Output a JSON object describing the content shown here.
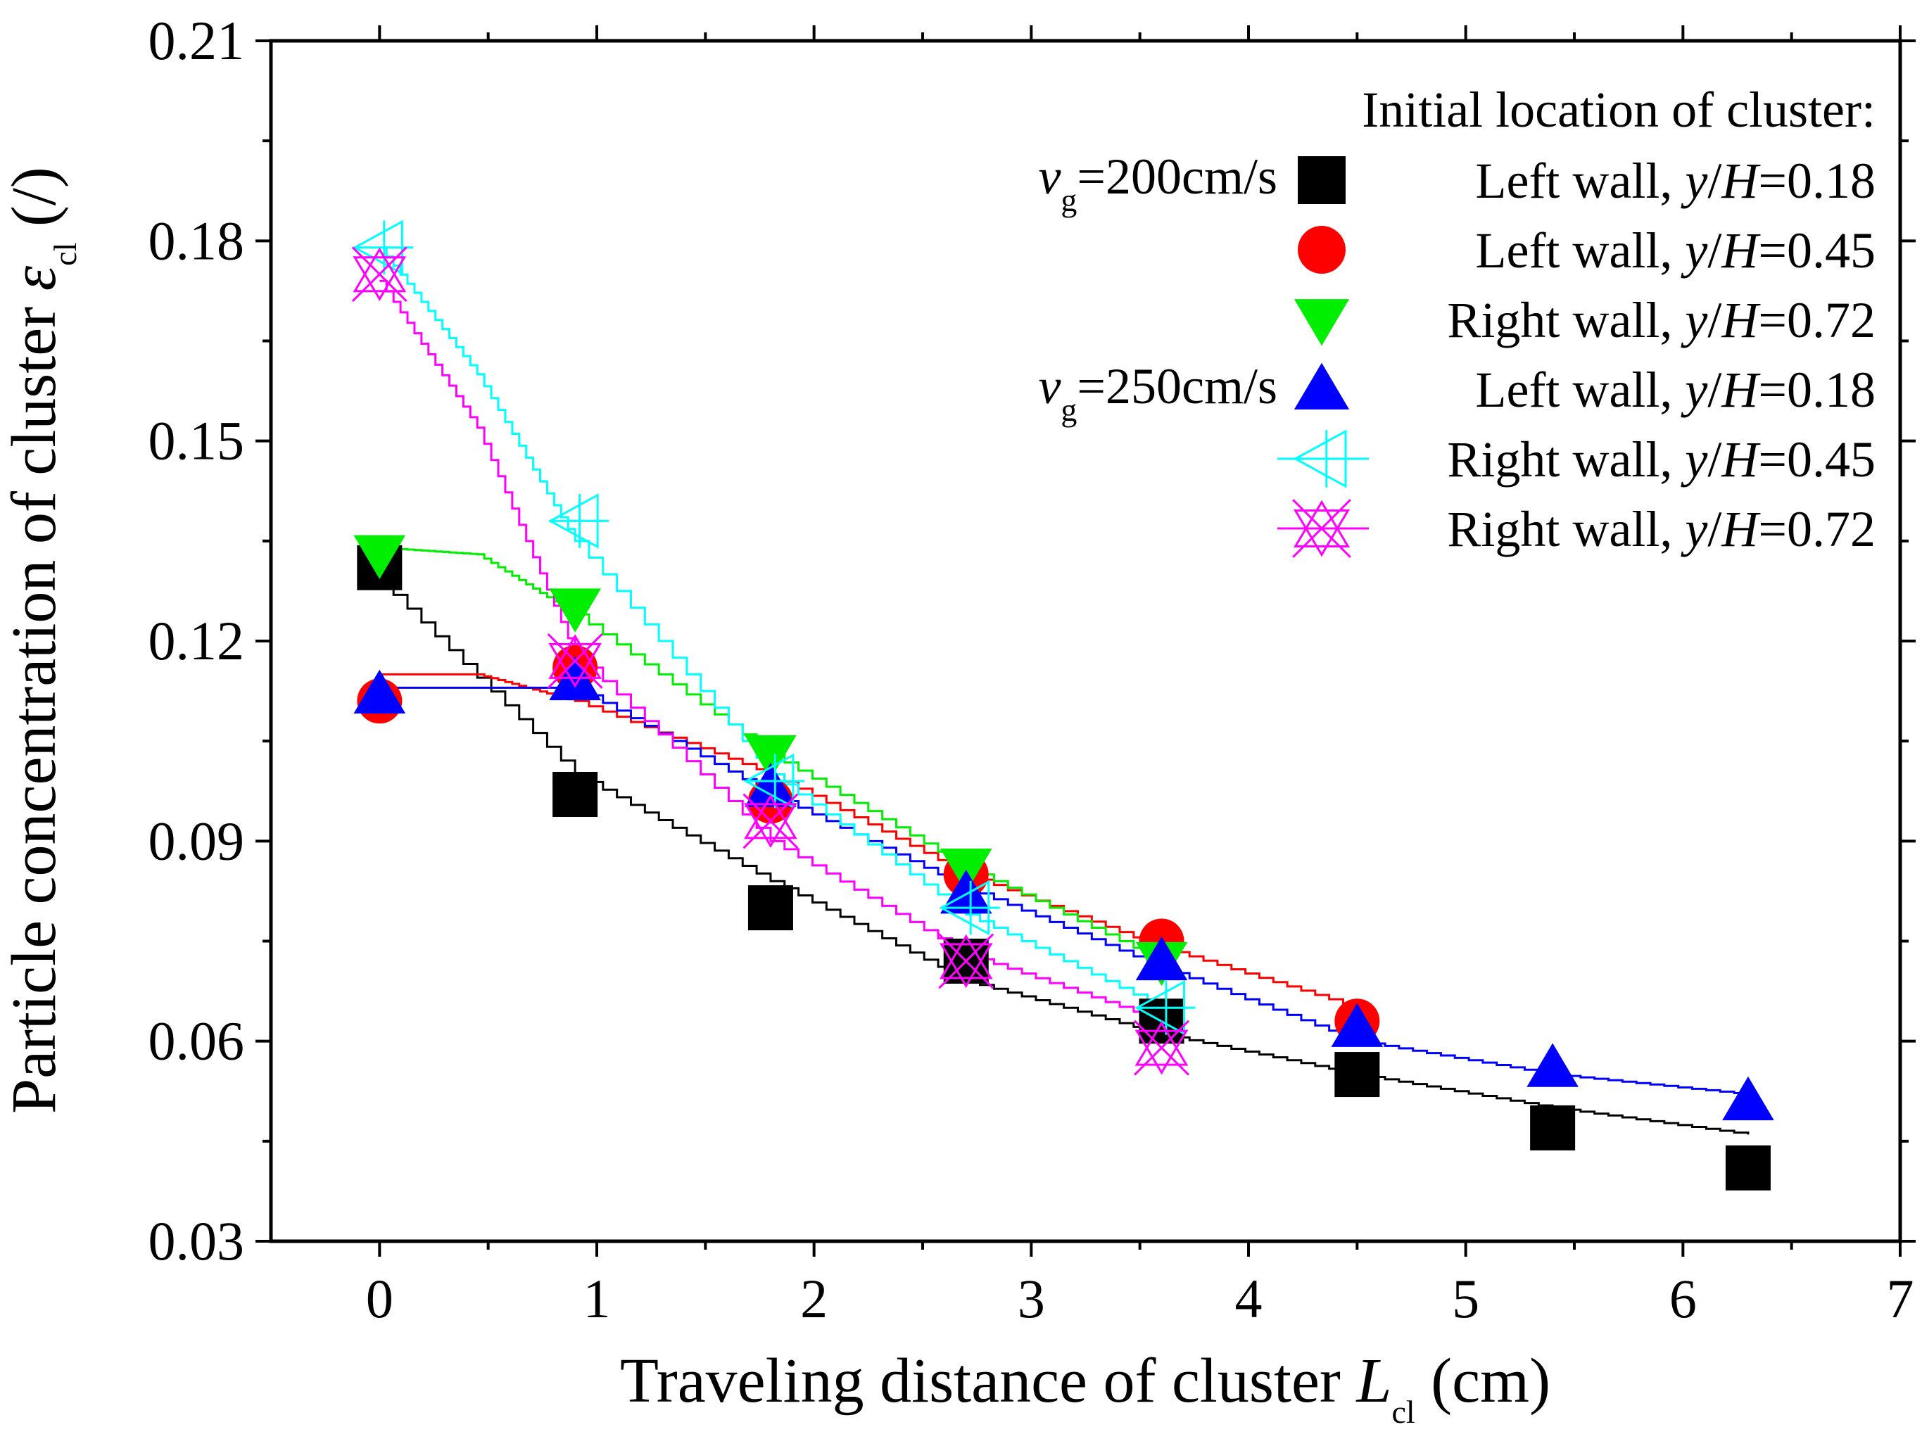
{
  "chart_data": {
    "type": "scatter",
    "xlabel": "Traveling distance of cluster ",
    "xlabel_symbol": "L",
    "xlabel_subscript": "cl",
    "xlabel_unit": " (cm)",
    "ylabel": "Particle concentration of cluster ",
    "ylabel_symbol": "ε",
    "ylabel_subscript": "cl",
    "ylabel_unit": " (/)",
    "xlim": [
      -0.5,
      7
    ],
    "ylim": [
      0.03,
      0.21
    ],
    "x_ticks": [
      0,
      1,
      2,
      3,
      4,
      5,
      6,
      7
    ],
    "x_tick_labels": [
      "0",
      "1",
      "2",
      "3",
      "4",
      "5",
      "6",
      "7"
    ],
    "y_ticks": [
      0.03,
      0.06,
      0.09,
      0.12,
      0.15,
      0.18,
      0.21
    ],
    "y_tick_labels": [
      "0.03",
      "0.06",
      "0.09",
      "0.12",
      "0.15",
      "0.18",
      "0.21"
    ],
    "legend": {
      "title": "Initial location of cluster:",
      "position": "top-right",
      "group_labels": [
        {
          "symbol": "v",
          "subscript": "g",
          "text": "=200cm/s"
        },
        {
          "symbol": "v",
          "subscript": "g",
          "text": "=250cm/s"
        }
      ]
    },
    "series": [
      {
        "name": "Left   wall, ",
        "ratio": "y/H",
        "ratio_value": "=0.18",
        "group": "200cm/s",
        "marker": "square",
        "color": "#000000",
        "x": [
          0.0,
          0.9,
          1.8,
          2.7,
          3.6,
          4.5,
          5.4,
          6.3
        ],
        "y": [
          0.131,
          0.097,
          0.08,
          0.072,
          0.063,
          0.055,
          0.047,
          0.041
        ]
      },
      {
        "name": "Left   wall, ",
        "ratio": "y/H",
        "ratio_value": "=0.45",
        "group": "200cm/s",
        "marker": "circle",
        "color": "#ff0000",
        "x": [
          0.0,
          0.9,
          1.8,
          2.7,
          3.6,
          4.5
        ],
        "y": [
          0.111,
          0.116,
          0.096,
          0.085,
          0.075,
          0.063
        ]
      },
      {
        "name": "Right wall, ",
        "ratio": "y/H",
        "ratio_value": "=0.72",
        "group": "200cm/s",
        "marker": "triangle-down",
        "color": "#00ee00",
        "x": [
          0.0,
          0.9,
          1.8,
          2.7,
          3.6
        ],
        "y": [
          0.133,
          0.125,
          0.103,
          0.086,
          0.072
        ]
      },
      {
        "name": "Left   wall, ",
        "ratio": "y/H",
        "ratio_value": "=0.18",
        "group": "250cm/s",
        "marker": "triangle-up",
        "color": "#0000ff",
        "x": [
          0.0,
          0.9,
          1.8,
          2.7,
          3.6,
          4.5,
          5.4,
          6.3
        ],
        "y": [
          0.112,
          0.114,
          0.098,
          0.082,
          0.072,
          0.062,
          0.056,
          0.051
        ]
      },
      {
        "name": "Right wall, ",
        "ratio": "y/H",
        "ratio_value": "=0.45",
        "group": "250cm/s",
        "marker": "triangle-left-plus",
        "color": "#00ffff",
        "x": [
          0.0,
          0.9,
          1.8,
          2.7,
          3.6
        ],
        "y": [
          0.179,
          0.138,
          0.099,
          0.08,
          0.065
        ]
      },
      {
        "name": "Right wall, ",
        "ratio": "y/H",
        "ratio_value": "=0.72",
        "group": "250cm/s",
        "marker": "x-triangle",
        "color": "#ff00ff",
        "x": [
          0.0,
          0.9,
          1.8,
          2.7,
          3.6
        ],
        "y": [
          0.175,
          0.117,
          0.093,
          0.072,
          0.059
        ]
      }
    ],
    "fitted_curves": [
      {
        "color": "#000000",
        "x": [
          0.0,
          0.9,
          1.8,
          2.7,
          3.6,
          4.5,
          5.4,
          6.3
        ],
        "y": [
          0.129,
          0.1,
          0.084,
          0.069,
          0.061,
          0.055,
          0.05,
          0.046
        ]
      },
      {
        "color": "#ff0000",
        "x": [
          0.0,
          0.45,
          0.9,
          1.8,
          2.7,
          3.6,
          4.5
        ],
        "y": [
          0.115,
          0.115,
          0.111,
          0.1,
          0.085,
          0.074,
          0.065
        ]
      },
      {
        "color": "#00ee00",
        "x": [
          0.0,
          0.45,
          0.9,
          1.8,
          2.7,
          3.6
        ],
        "y": [
          0.134,
          0.133,
          0.124,
          0.103,
          0.086,
          0.072
        ]
      },
      {
        "color": "#0000ff",
        "x": [
          0.0,
          0.9,
          1.8,
          2.7,
          3.6,
          4.5,
          5.4,
          6.3
        ],
        "y": [
          0.113,
          0.113,
          0.097,
          0.083,
          0.071,
          0.06,
          0.055,
          0.052
        ]
      },
      {
        "color": "#00ffff",
        "x": [
          0.0,
          0.45,
          0.9,
          1.8,
          2.7,
          3.6
        ],
        "y": [
          0.179,
          0.16,
          0.135,
          0.1,
          0.079,
          0.065
        ]
      },
      {
        "color": "#ff00ff",
        "x": [
          0.0,
          0.45,
          0.9,
          1.8,
          2.7,
          3.6
        ],
        "y": [
          0.174,
          0.152,
          0.118,
          0.09,
          0.073,
          0.063
        ]
      }
    ]
  }
}
